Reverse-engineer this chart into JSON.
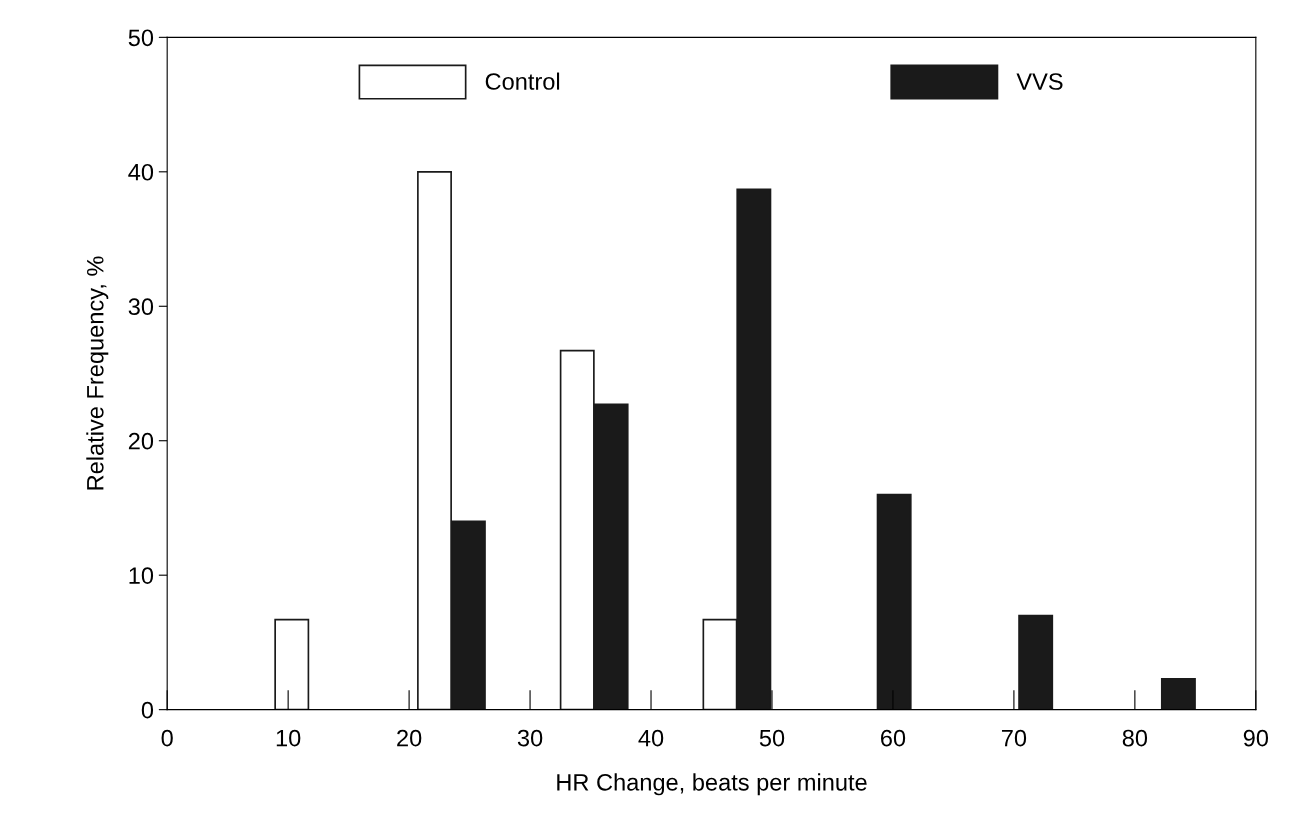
{
  "chart_data": {
    "type": "bar",
    "xlabel": "HR Change, beats per minute",
    "ylabel": "Relative Frequency, %",
    "series": [
      {
        "name": "Control",
        "color": "#ffffff",
        "x": [
          10.3,
          22.1,
          33.9,
          45.7
        ],
        "values": [
          6.7,
          40,
          26.7,
          6.7
        ]
      },
      {
        "name": "VVS",
        "color": "#1a1a1a",
        "x": [
          24.9,
          36.7,
          48.5,
          60.1,
          71.8,
          83.6
        ],
        "values": [
          14,
          22.7,
          38.7,
          16,
          7,
          2.3
        ]
      }
    ],
    "xlim": [
      0,
      90
    ],
    "xticks": [
      0,
      10,
      20,
      30,
      40,
      50,
      60,
      70,
      80,
      90
    ],
    "ylim": [
      0,
      50
    ],
    "yticks": [
      0,
      10,
      20,
      30,
      40,
      50
    ],
    "grid": false,
    "legend": "top"
  }
}
